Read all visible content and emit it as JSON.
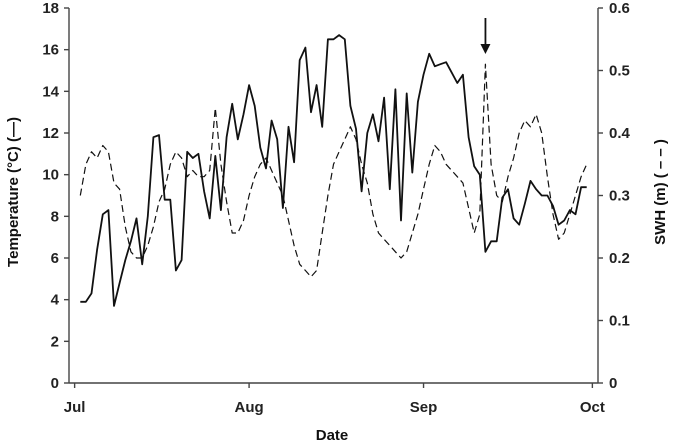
{
  "chart_data": {
    "type": "line",
    "xlabel": "Date",
    "ylabel": "Temperature (°C) (—)",
    "y2label": "SWH (m) ( – – )",
    "x_ticks": [
      "Jul",
      "Aug",
      "Sep",
      "Oct"
    ],
    "x_tick_positions": [
      0,
      31,
      62,
      92
    ],
    "x_range": [
      -1,
      93
    ],
    "ylim": [
      0,
      18
    ],
    "y_ticks": [
      "0",
      "2",
      "4",
      "6",
      "8",
      "10",
      "12",
      "14",
      "16",
      "18"
    ],
    "y2lim": [
      0,
      0.6
    ],
    "y2_ticks": [
      "0",
      "0.1",
      "0.2",
      "0.3",
      "0.4",
      "0.5",
      "0.6"
    ],
    "grid": false,
    "annotation": {
      "type": "arrow",
      "x": 73,
      "y2": 0.52
    },
    "series": [
      {
        "axis": "left",
        "style": "solid",
        "x": [
          1,
          2,
          3,
          4,
          5,
          6,
          7,
          8,
          9,
          10,
          11,
          12,
          13,
          14,
          15,
          16,
          17,
          18,
          19,
          20,
          21,
          22,
          23,
          24,
          25,
          26,
          27,
          28,
          29,
          30,
          31,
          32,
          33,
          34,
          35,
          36,
          37,
          38,
          39,
          40,
          41,
          42,
          43,
          44,
          45,
          46,
          47,
          48,
          49,
          50,
          51,
          52,
          53,
          54,
          55,
          56,
          57,
          58,
          59,
          60,
          61,
          62,
          63,
          64,
          65,
          66,
          67,
          68,
          69,
          70,
          71,
          72,
          73,
          74,
          75,
          76,
          77,
          78,
          79,
          80,
          81,
          82,
          83,
          84,
          85,
          86,
          87,
          88,
          89,
          90,
          91
        ],
        "values": [
          3.9,
          3.9,
          4.3,
          6.4,
          8.1,
          8.3,
          3.7,
          4.8,
          5.9,
          6.8,
          7.9,
          5.7,
          8.0,
          11.8,
          11.9,
          8.8,
          8.8,
          5.4,
          5.9,
          11.1,
          10.8,
          11.0,
          9.2,
          7.9,
          10.9,
          8.3,
          11.8,
          13.4,
          11.7,
          12.9,
          14.3,
          13.3,
          11.3,
          10.3,
          12.6,
          11.7,
          8.4,
          12.3,
          10.6,
          15.5,
          16.1,
          13.0,
          14.3,
          12.3,
          16.5,
          16.5,
          16.7,
          16.5,
          13.3,
          12.2,
          9.2,
          12.0,
          12.9,
          11.6,
          13.7,
          9.3,
          14.1,
          7.8,
          13.9,
          10.1,
          13.5,
          14.8,
          15.8,
          15.2,
          15.3,
          15.4,
          14.9,
          14.4,
          14.8,
          11.8,
          10.4,
          10.0,
          6.3,
          6.8,
          6.8,
          8.9,
          9.3,
          7.9,
          7.6,
          8.6,
          9.7,
          9.3,
          9.0,
          9.0,
          8.5,
          7.6,
          7.8,
          8.3,
          8.1,
          9.4,
          9.4
        ]
      },
      {
        "axis": "right",
        "style": "dashed",
        "x": [
          1,
          2,
          3,
          4,
          5,
          6,
          7,
          8,
          9,
          10,
          11,
          12,
          13,
          14,
          15,
          16,
          17,
          18,
          19,
          20,
          21,
          22,
          23,
          24,
          25,
          26,
          27,
          28,
          29,
          30,
          31,
          32,
          33,
          34,
          35,
          36,
          37,
          38,
          39,
          40,
          41,
          42,
          43,
          44,
          45,
          46,
          47,
          48,
          49,
          50,
          51,
          52,
          53,
          54,
          55,
          56,
          57,
          58,
          59,
          60,
          61,
          62,
          63,
          64,
          65,
          66,
          67,
          68,
          69,
          70,
          71,
          72,
          73,
          74,
          75,
          76,
          77,
          78,
          79,
          80,
          81,
          82,
          83,
          84,
          85,
          86,
          87,
          88,
          89,
          90,
          91
        ],
        "values": [
          0.3,
          0.35,
          0.37,
          0.36,
          0.38,
          0.37,
          0.32,
          0.31,
          0.25,
          0.21,
          0.2,
          0.2,
          0.22,
          0.25,
          0.29,
          0.31,
          0.35,
          0.37,
          0.36,
          0.33,
          0.34,
          0.33,
          0.33,
          0.34,
          0.44,
          0.35,
          0.29,
          0.24,
          0.24,
          0.26,
          0.3,
          0.33,
          0.35,
          0.36,
          0.34,
          0.32,
          0.3,
          0.26,
          0.22,
          0.19,
          0.18,
          0.17,
          0.18,
          0.24,
          0.3,
          0.35,
          0.37,
          0.39,
          0.41,
          0.39,
          0.35,
          0.32,
          0.27,
          0.24,
          0.23,
          0.22,
          0.21,
          0.2,
          0.21,
          0.24,
          0.27,
          0.31,
          0.35,
          0.38,
          0.37,
          0.35,
          0.34,
          0.33,
          0.32,
          0.28,
          0.24,
          0.27,
          0.51,
          0.35,
          0.3,
          0.29,
          0.33,
          0.36,
          0.4,
          0.42,
          0.41,
          0.43,
          0.4,
          0.33,
          0.27,
          0.23,
          0.24,
          0.27,
          0.3,
          0.33,
          0.35
        ]
      }
    ]
  }
}
